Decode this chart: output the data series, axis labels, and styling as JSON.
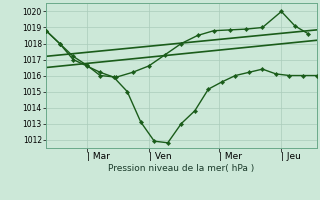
{
  "bg_color": "#cce8d8",
  "plot_bg": "#cce8d8",
  "line_color": "#1a5c1a",
  "grid_color": "#aaccbb",
  "xlabel": "Pression niveau de la mer( hPa )",
  "ylim": [
    1011.5,
    1020.5
  ],
  "yticks": [
    1012,
    1013,
    1014,
    1015,
    1016,
    1017,
    1018,
    1019,
    1020
  ],
  "ytick_fontsize": 5.5,
  "xtick_labels": [
    "| Mar",
    "| Ven",
    "| Mer",
    "| Jeu"
  ],
  "xtick_positions": [
    0.15,
    0.38,
    0.64,
    0.87
  ],
  "series": [
    {
      "x": [
        0.0,
        0.05,
        0.1,
        0.15,
        0.2,
        0.25,
        0.3,
        0.35,
        0.4,
        0.45,
        0.5,
        0.55,
        0.6,
        0.65,
        0.7,
        0.75,
        0.8,
        0.85,
        0.9,
        0.95,
        1.0
      ],
      "y": [
        1018.8,
        1018.0,
        1017.0,
        1016.6,
        1016.2,
        1015.9,
        1015.0,
        1013.1,
        1011.9,
        1011.8,
        1013.0,
        1013.8,
        1015.15,
        1015.6,
        1016.0,
        1016.2,
        1016.4,
        1016.1,
        1016.0,
        1016.0,
        1016.0
      ],
      "marker": true,
      "lw": 1.0
    },
    {
      "x": [
        0.0,
        0.05,
        0.1,
        0.15,
        0.2,
        0.26,
        0.32,
        0.38,
        0.44,
        0.5,
        0.56,
        0.62,
        0.68,
        0.74,
        0.8,
        0.87,
        0.92,
        0.97
      ],
      "y": [
        1018.8,
        1018.0,
        1017.2,
        1016.65,
        1016.0,
        1015.9,
        1016.2,
        1016.6,
        1017.3,
        1018.0,
        1018.5,
        1018.8,
        1018.85,
        1018.9,
        1019.0,
        1020.0,
        1019.1,
        1018.6
      ],
      "marker": true,
      "lw": 1.0
    },
    {
      "x": [
        0.0,
        1.0
      ],
      "y": [
        1016.5,
        1018.2
      ],
      "marker": false,
      "lw": 1.2
    },
    {
      "x": [
        0.0,
        1.0
      ],
      "y": [
        1017.2,
        1018.85
      ],
      "marker": false,
      "lw": 1.2
    }
  ]
}
